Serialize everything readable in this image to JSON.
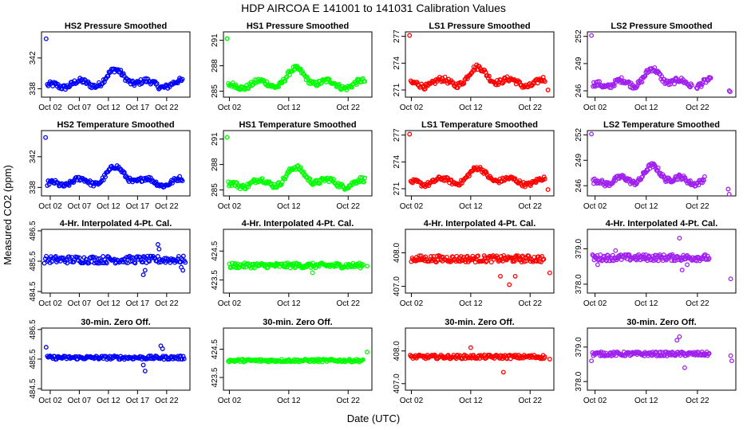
{
  "figure": {
    "title": "HDP    AIRCOA E    141001 to 141031    Calibration Values",
    "xlabel": "Date (UTC)",
    "ylabel": "Measured CO2 (ppm)"
  },
  "colors": {
    "blue": "#0000ff",
    "green": "#00ff00",
    "red": "#ff0000",
    "purple": "#a020f0"
  },
  "chart_data": [
    {
      "type": "scatter",
      "title": "HS2 Pressure Smoothed",
      "color": "blue",
      "xlim": [
        0.5,
        26.0
      ],
      "xticks": [
        {
          "v": 2,
          "label": "Oct 02"
        },
        {
          "v": 7,
          "label": "Oct 07"
        },
        {
          "v": 12,
          "label": "Oct 12"
        },
        {
          "v": 17,
          "label": "Oct 17"
        },
        {
          "v": 22,
          "label": "Oct 22"
        }
      ],
      "ylim": [
        336.9,
        345.4
      ],
      "yticks": [
        {
          "v": 338,
          "label": "338"
        },
        {
          "v": 342,
          "label": "342"
        }
      ],
      "shape": "drift",
      "x_range": [
        1.5,
        24.7
      ],
      "base": 338.6,
      "amp": 1.5,
      "noise": 0.35,
      "peak": 13.5,
      "outliers": [
        [
          1.3,
          344.5
        ]
      ],
      "gap": null
    },
    {
      "type": "scatter",
      "title": "HS1 Pressure Smoothed",
      "color": "green",
      "xlim": [
        1.0,
        26.0
      ],
      "xticks": [
        {
          "v": 2,
          "label": "Oct 02"
        },
        {
          "v": 12,
          "label": "Oct 12"
        },
        {
          "v": 22,
          "label": "Oct 22"
        }
      ],
      "ylim": [
        284.3,
        292.0
      ],
      "yticks": [
        {
          "v": 285,
          "label": "285"
        },
        {
          "v": 288,
          "label": "288"
        },
        {
          "v": 291,
          "label": "291"
        }
      ],
      "shape": "drift",
      "x_range": [
        1.8,
        24.8
      ],
      "base": 285.8,
      "amp": 1.5,
      "noise": 0.3,
      "peak": 13.5,
      "outliers": [
        [
          1.6,
          291.2
        ]
      ],
      "gap": null
    },
    {
      "type": "scatter",
      "title": "LS1 Pressure Smoothed",
      "color": "red",
      "xlim": [
        1.0,
        26.0
      ],
      "xticks": [
        {
          "v": 2,
          "label": "Oct 02"
        },
        {
          "v": 12,
          "label": "Oct 12"
        },
        {
          "v": 22,
          "label": "Oct 22"
        }
      ],
      "ylim": [
        270.2,
        277.5
      ],
      "yticks": [
        {
          "v": 271,
          "label": "271"
        },
        {
          "v": 274,
          "label": "274"
        },
        {
          "v": 277,
          "label": "277"
        }
      ],
      "shape": "drift",
      "x_range": [
        1.9,
        24.5
      ],
      "base": 271.8,
      "amp": 1.4,
      "noise": 0.3,
      "peak": 13.5,
      "outliers": [
        [
          1.7,
          277.1
        ],
        [
          25.0,
          271.0
        ]
      ],
      "gap": null
    },
    {
      "type": "scatter",
      "title": "LS2 Pressure Smoothed",
      "color": "purple",
      "xlim": [
        0.5,
        29.5
      ],
      "xticks": [
        {
          "v": 2,
          "label": "Oct 02"
        },
        {
          "v": 12,
          "label": "Oct 12"
        },
        {
          "v": 22,
          "label": "Oct 22"
        }
      ],
      "ylim": [
        245.3,
        252.5
      ],
      "yticks": [
        {
          "v": 246,
          "label": "246"
        },
        {
          "v": 249,
          "label": "249"
        },
        {
          "v": 252,
          "label": "252"
        }
      ],
      "shape": "drift",
      "x_range": [
        1.6,
        24.6
      ],
      "base": 246.8,
      "amp": 1.3,
      "noise": 0.3,
      "peak": 13.5,
      "outliers": [
        [
          1.3,
          252.1
        ],
        [
          28.2,
          246.0
        ],
        [
          28.4,
          245.9
        ]
      ],
      "gap": [
        21.0,
        21.8
      ]
    },
    {
      "type": "scatter",
      "title": "HS2 Temperature Smoothed",
      "color": "blue",
      "xlim": [
        0.5,
        26.0
      ],
      "xticks": [
        {
          "v": 2,
          "label": "Oct 02"
        },
        {
          "v": 7,
          "label": "Oct 07"
        },
        {
          "v": 12,
          "label": "Oct 12"
        },
        {
          "v": 17,
          "label": "Oct 17"
        },
        {
          "v": 22,
          "label": "Oct 22"
        }
      ],
      "ylim": [
        336.9,
        345.4
      ],
      "yticks": [
        {
          "v": 338,
          "label": "338"
        },
        {
          "v": 342,
          "label": "342"
        }
      ],
      "shape": "drift",
      "x_range": [
        1.5,
        24.7
      ],
      "base": 338.7,
      "amp": 1.6,
      "noise": 0.3,
      "peak": 13.5,
      "outliers": [
        [
          1.2,
          344.5
        ]
      ],
      "gap": null
    },
    {
      "type": "scatter",
      "title": "HS1 Temperature Smoothed",
      "color": "green",
      "xlim": [
        1.0,
        26.0
      ],
      "xticks": [
        {
          "v": 2,
          "label": "Oct 02"
        },
        {
          "v": 12,
          "label": "Oct 12"
        },
        {
          "v": 22,
          "label": "Oct 22"
        }
      ],
      "ylim": [
        284.3,
        292.0
      ],
      "yticks": [
        {
          "v": 285,
          "label": "285"
        },
        {
          "v": 288,
          "label": "288"
        },
        {
          "v": 291,
          "label": "291"
        }
      ],
      "shape": "drift",
      "x_range": [
        1.8,
        24.8
      ],
      "base": 285.8,
      "amp": 1.5,
      "noise": 0.3,
      "peak": 13.5,
      "outliers": [
        [
          1.6,
          291.2
        ]
      ],
      "gap": null
    },
    {
      "type": "scatter",
      "title": "LS1 Temperature Smoothed",
      "color": "red",
      "xlim": [
        1.0,
        26.0
      ],
      "xticks": [
        {
          "v": 2,
          "label": "Oct 02"
        },
        {
          "v": 12,
          "label": "Oct 12"
        },
        {
          "v": 22,
          "label": "Oct 22"
        }
      ],
      "ylim": [
        270.2,
        277.5
      ],
      "yticks": [
        {
          "v": 271,
          "label": "271"
        },
        {
          "v": 274,
          "label": "274"
        },
        {
          "v": 277,
          "label": "277"
        }
      ],
      "shape": "drift",
      "x_range": [
        1.9,
        24.5
      ],
      "base": 271.8,
      "amp": 1.2,
      "noise": 0.25,
      "peak": 13.5,
      "outliers": [
        [
          1.7,
          277.1
        ],
        [
          25.0,
          270.9
        ]
      ],
      "gap": null
    },
    {
      "type": "scatter",
      "title": "LS2 Temperature Smoothed",
      "color": "purple",
      "xlim": [
        0.5,
        29.5
      ],
      "xticks": [
        {
          "v": 2,
          "label": "Oct 02"
        },
        {
          "v": 12,
          "label": "Oct 12"
        },
        {
          "v": 22,
          "label": "Oct 22"
        }
      ],
      "ylim": [
        244.8,
        252.5
      ],
      "yticks": [
        {
          "v": 246,
          "label": "246"
        },
        {
          "v": 249,
          "label": "249"
        },
        {
          "v": 252,
          "label": "252"
        }
      ],
      "shape": "drift",
      "x_range": [
        1.6,
        23.4
      ],
      "base": 246.6,
      "amp": 1.4,
      "noise": 0.3,
      "peak": 13.5,
      "outliers": [
        [
          1.3,
          252.1
        ],
        [
          28.0,
          245.6
        ],
        [
          28.2,
          245.0
        ]
      ],
      "gap": null
    },
    {
      "type": "scatter",
      "title": "4-Hr. Interpolated 4-Pt. Cal.",
      "color": "blue",
      "xlim": [
        0.5,
        26.0
      ],
      "xticks": [
        {
          "v": 2,
          "label": "Oct 02"
        },
        {
          "v": 7,
          "label": "Oct 07"
        },
        {
          "v": 12,
          "label": "Oct 12"
        },
        {
          "v": 17,
          "label": "Oct 17"
        },
        {
          "v": 22,
          "label": "Oct 22"
        }
      ],
      "ylim": [
        484.45,
        486.55
      ],
      "yticks": [
        {
          "v": 484.5,
          "label": "484.5"
        },
        {
          "v": 485.5,
          "label": "485.5"
        },
        {
          "v": 486.5,
          "label": "486.5"
        }
      ],
      "shape": "flat",
      "x_range": [
        1.0,
        25.2
      ],
      "base": 485.55,
      "amp": 0,
      "noise": 0.12,
      "peak": 13.5,
      "outliers": [
        [
          18.0,
          485.05
        ],
        [
          18.3,
          485.2
        ],
        [
          20.5,
          486.05
        ],
        [
          20.7,
          485.9
        ],
        [
          24.5,
          485.3
        ],
        [
          24.8,
          485.2
        ]
      ],
      "gap": null
    },
    {
      "type": "scatter",
      "title": "4-Hr. Interpolated 4-Pt. Cal.",
      "color": "green",
      "xlim": [
        1.0,
        26.0
      ],
      "xticks": [
        {
          "v": 2,
          "label": "Oct 02"
        },
        {
          "v": 12,
          "label": "Oct 12"
        },
        {
          "v": 22,
          "label": "Oct 22"
        }
      ],
      "ylim": [
        423.05,
        425.25
      ],
      "yticks": [
        {
          "v": 423.5,
          "label": "423.5"
        },
        {
          "v": 424.5,
          "label": "424.5"
        }
      ],
      "shape": "flat",
      "x_range": [
        2.0,
        24.5
      ],
      "base": 424.0,
      "amp": 0,
      "noise": 0.09,
      "peak": 13.5,
      "outliers": [
        [
          16.0,
          423.75
        ],
        [
          25.2,
          423.98
        ]
      ],
      "gap": null
    },
    {
      "type": "scatter",
      "title": "4-Hr. Interpolated 4-Pt. Cal.",
      "color": "red",
      "xlim": [
        1.0,
        26.0
      ],
      "xticks": [
        {
          "v": 2,
          "label": "Oct 02"
        },
        {
          "v": 12,
          "label": "Oct 12"
        },
        {
          "v": 22,
          "label": "Oct 22"
        }
      ],
      "ylim": [
        406.8,
        408.7
      ],
      "yticks": [
        {
          "v": 407.0,
          "label": "407.0"
        },
        {
          "v": 408.0,
          "label": "408.0"
        }
      ],
      "shape": "flat",
      "x_range": [
        2.0,
        24.3
      ],
      "base": 407.82,
      "amp": 0,
      "noise": 0.1,
      "peak": 13.5,
      "outliers": [
        [
          17.0,
          407.3
        ],
        [
          18.5,
          407.05
        ],
        [
          19.5,
          407.3
        ],
        [
          25.3,
          407.4
        ]
      ],
      "gap": null
    },
    {
      "type": "scatter",
      "title": "4-Hr. Interpolated 4-Pt. Cal.",
      "color": "purple",
      "xlim": [
        0.5,
        29.5
      ],
      "xticks": [
        {
          "v": 2,
          "label": "Oct 02"
        },
        {
          "v": 12,
          "label": "Oct 12"
        },
        {
          "v": 22,
          "label": "Oct 22"
        }
      ],
      "ylim": [
        377.75,
        379.55
      ],
      "yticks": [
        {
          "v": 378.0,
          "label": "378.0"
        },
        {
          "v": 379.0,
          "label": "379.0"
        }
      ],
      "shape": "flat",
      "x_range": [
        1.5,
        24.3
      ],
      "base": 378.75,
      "amp": 0,
      "noise": 0.09,
      "peak": 13.5,
      "outliers": [
        [
          2.5,
          378.55
        ],
        [
          18.5,
          379.3
        ],
        [
          19.0,
          378.4
        ],
        [
          20.0,
          378.55
        ],
        [
          28.5,
          378.15
        ],
        [
          6.0,
          378.95
        ]
      ],
      "gap": null
    },
    {
      "type": "scatter",
      "title": "30-min. Zero Off.",
      "color": "blue",
      "xlim": [
        0.5,
        26.0
      ],
      "xticks": [
        {
          "v": 2,
          "label": "Oct 02"
        },
        {
          "v": 7,
          "label": "Oct 07"
        },
        {
          "v": 12,
          "label": "Oct 12"
        },
        {
          "v": 17,
          "label": "Oct 17"
        },
        {
          "v": 22,
          "label": "Oct 22"
        }
      ],
      "ylim": [
        484.45,
        486.55
      ],
      "yticks": [
        {
          "v": 484.5,
          "label": "484.5"
        },
        {
          "v": 485.5,
          "label": "485.5"
        },
        {
          "v": 486.5,
          "label": "486.5"
        }
      ],
      "shape": "flat",
      "x_range": [
        1.5,
        25.0
      ],
      "base": 485.55,
      "amp": 0,
      "noise": 0.06,
      "peak": 13.5,
      "outliers": [
        [
          1.3,
          485.9
        ],
        [
          18.0,
          485.3
        ],
        [
          18.3,
          485.1
        ],
        [
          21.0,
          485.95
        ],
        [
          21.3,
          485.85
        ]
      ],
      "gap": null
    },
    {
      "type": "scatter",
      "title": "30-min. Zero Off.",
      "color": "green",
      "xlim": [
        1.0,
        26.0
      ],
      "xticks": [
        {
          "v": 2,
          "label": "Oct 02"
        },
        {
          "v": 12,
          "label": "Oct 12"
        },
        {
          "v": 22,
          "label": "Oct 22"
        }
      ],
      "ylim": [
        423.05,
        425.25
      ],
      "yticks": [
        {
          "v": 423.5,
          "label": "423.5"
        },
        {
          "v": 424.5,
          "label": "424.5"
        }
      ],
      "shape": "flat",
      "x_range": [
        1.8,
        24.5
      ],
      "base": 424.1,
      "amp": 0,
      "noise": 0.05,
      "peak": 13.5,
      "outliers": [
        [
          25.2,
          424.4
        ]
      ],
      "gap": null
    },
    {
      "type": "scatter",
      "title": "30-min. Zero Off.",
      "color": "red",
      "xlim": [
        1.0,
        26.0
      ],
      "xticks": [
        {
          "v": 2,
          "label": "Oct 02"
        },
        {
          "v": 12,
          "label": "Oct 12"
        },
        {
          "v": 22,
          "label": "Oct 22"
        }
      ],
      "ylim": [
        406.8,
        408.7
      ],
      "yticks": [
        {
          "v": 407.0,
          "label": "407.0"
        },
        {
          "v": 408.0,
          "label": "408.0"
        }
      ],
      "shape": "flat",
      "x_range": [
        1.8,
        24.5
      ],
      "base": 407.82,
      "amp": 0,
      "noise": 0.06,
      "peak": 13.5,
      "outliers": [
        [
          17.5,
          407.35
        ],
        [
          25.3,
          407.75
        ],
        [
          12.0,
          408.1
        ]
      ],
      "gap": null
    },
    {
      "type": "scatter",
      "title": "30-min. Zero Off.",
      "color": "purple",
      "xlim": [
        0.5,
        29.5
      ],
      "xticks": [
        {
          "v": 2,
          "label": "Oct 02"
        },
        {
          "v": 12,
          "label": "Oct 12"
        },
        {
          "v": 22,
          "label": "Oct 22"
        }
      ],
      "ylim": [
        377.75,
        379.55
      ],
      "yticks": [
        {
          "v": 378.0,
          "label": "378.0"
        },
        {
          "v": 379.0,
          "label": "379.0"
        }
      ],
      "shape": "flat",
      "x_range": [
        1.5,
        24.3
      ],
      "base": 378.8,
      "amp": 0,
      "noise": 0.06,
      "peak": 13.5,
      "outliers": [
        [
          1.3,
          378.6
        ],
        [
          18.0,
          379.2
        ],
        [
          18.5,
          379.3
        ],
        [
          19.5,
          378.4
        ],
        [
          28.5,
          378.75
        ],
        [
          28.7,
          378.6
        ]
      ],
      "gap": null
    }
  ]
}
